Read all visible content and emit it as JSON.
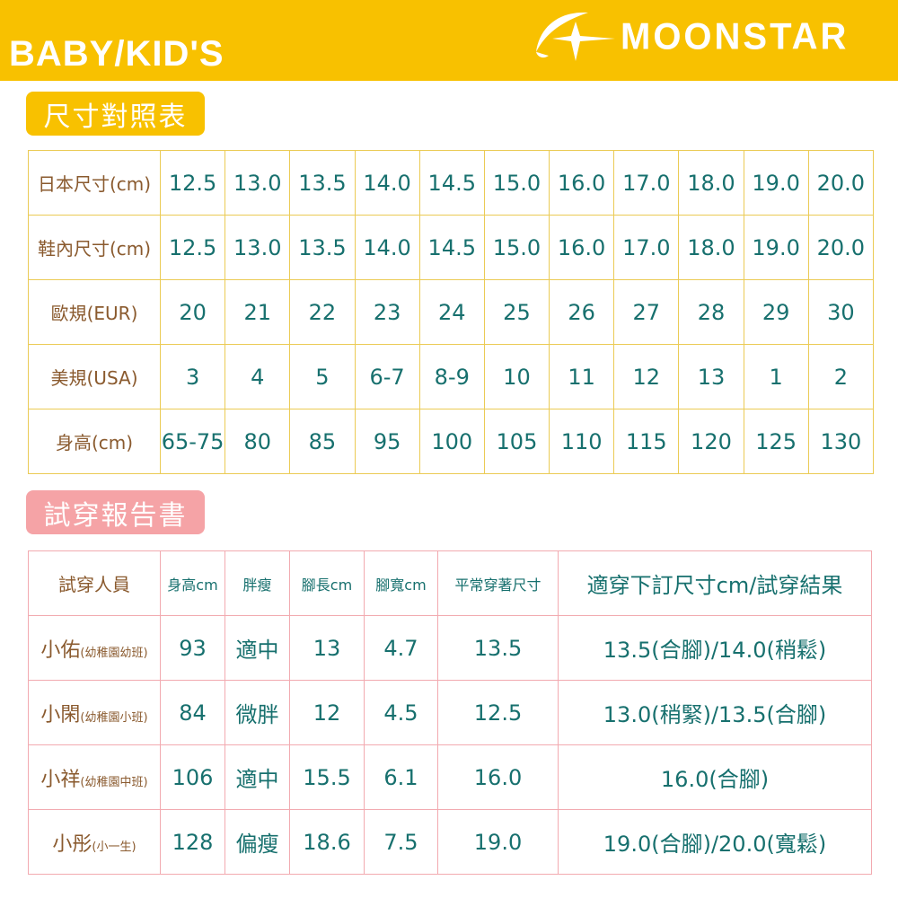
{
  "header": {
    "title": "BABY/KID'S",
    "logo_text": "MOONSTAR",
    "brand_color": "#F8C100"
  },
  "size_chart": {
    "title": "尺寸對照表",
    "rows": [
      {
        "label": "日本尺寸(cm)",
        "values": [
          "12.5",
          "13.0",
          "13.5",
          "14.0",
          "14.5",
          "15.0",
          "16.0",
          "17.0",
          "18.0",
          "19.0",
          "20.0"
        ]
      },
      {
        "label": "鞋內尺寸(cm)",
        "values": [
          "12.5",
          "13.0",
          "13.5",
          "14.0",
          "14.5",
          "15.0",
          "16.0",
          "17.0",
          "18.0",
          "19.0",
          "20.0"
        ]
      },
      {
        "label": "歐規(EUR)",
        "values": [
          "20",
          "21",
          "22",
          "23",
          "24",
          "25",
          "26",
          "27",
          "28",
          "29",
          "30"
        ]
      },
      {
        "label": "美規(USA)",
        "values": [
          "3",
          "4",
          "5",
          "6-7",
          "8-9",
          "10",
          "11",
          "12",
          "13",
          "1",
          "2"
        ]
      },
      {
        "label": "身高(cm)",
        "values": [
          "65-75",
          "80",
          "85",
          "95",
          "100",
          "105",
          "110",
          "115",
          "120",
          "125",
          "130"
        ]
      }
    ]
  },
  "fit_report": {
    "title": "試穿報告書",
    "columns": [
      "試穿人員",
      "身高cm",
      "胖瘦",
      "腳長cm",
      "腳寬cm",
      "平常穿著尺寸",
      "適穿下訂尺寸cm/試穿結果"
    ],
    "rows": [
      {
        "name": "小佑",
        "note": "(幼稚園幼班)",
        "values": [
          "93",
          "適中",
          "13",
          "4.7",
          "13.5",
          "13.5(合腳)/14.0(稍鬆)"
        ]
      },
      {
        "name": "小閑",
        "note": "(幼稚園小班)",
        "values": [
          "84",
          "微胖",
          "12",
          "4.5",
          "12.5",
          "13.0(稍緊)/13.5(合腳)"
        ]
      },
      {
        "name": "小祥",
        "note": "(幼稚園中班)",
        "values": [
          "106",
          "適中",
          "15.5",
          "6.1",
          "16.0",
          "16.0(合腳)"
        ]
      },
      {
        "name": "小彤",
        "note": "(小一生)",
        "values": [
          "128",
          "偏瘦",
          "18.6",
          "7.5",
          "19.0",
          "19.0(合腳)/20.0(寬鬆)"
        ]
      }
    ]
  }
}
